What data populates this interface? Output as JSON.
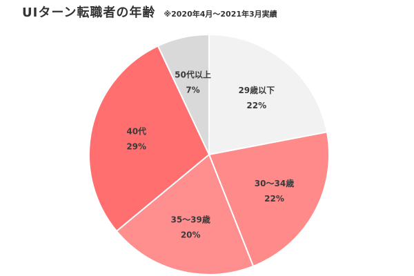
{
  "header": {
    "title": "UIターン転職者の年齢",
    "subtitle": "※2020年4月～2021年3月実績"
  },
  "chart_data": {
    "type": "pie",
    "title": "UIターン転職者の年齢",
    "subtitle": "※2020年4月～2021年3月実績",
    "categories": [
      "29歳以下",
      "30～34歳",
      "35～39歳",
      "40代",
      "50代以上"
    ],
    "values": [
      22,
      22,
      20,
      29,
      7
    ],
    "value_labels": [
      "22%",
      "22%",
      "20%",
      "29%",
      "7%"
    ],
    "colors": [
      "#f2f2f2",
      "#ff8a8a",
      "#ff8f8f",
      "#ff6f6f",
      "#d9d9d9"
    ],
    "start_angle_deg": 0,
    "direction": "clockwise",
    "legend": "none"
  }
}
